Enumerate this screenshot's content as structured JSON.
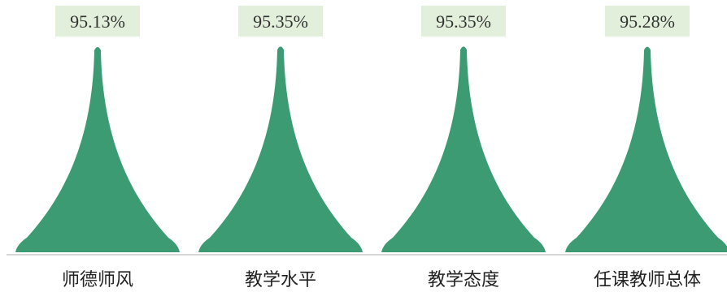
{
  "chart_data": {
    "type": "bar",
    "categories": [
      "师德师风",
      "教学水平",
      "教学态度",
      "任课教师总体"
    ],
    "values": [
      95.13,
      95.35,
      95.35,
      95.28
    ],
    "data_labels": [
      "95.13%",
      "95.35%",
      "95.35%",
      "95.28%"
    ],
    "title": "",
    "xlabel": "",
    "ylabel": "",
    "ylim": [
      0,
      95.5
    ],
    "grid": false,
    "legend": "none",
    "bar_shape": "pictorial-peak"
  },
  "colors": {
    "bar": "#3d9b73",
    "label_background": "#e2efdb",
    "axis": "#c8c8c8",
    "value_text": "#333333",
    "category_text": "#222222"
  }
}
